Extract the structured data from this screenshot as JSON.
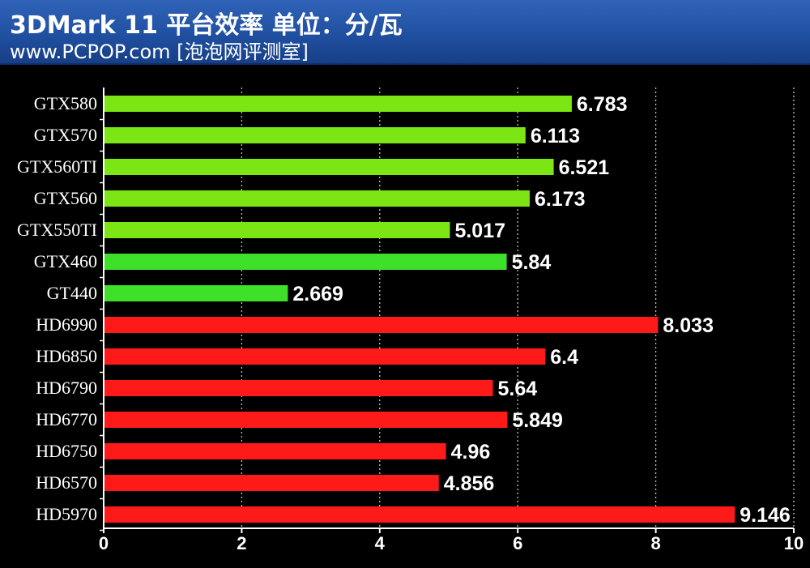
{
  "header": {
    "title": "3DMark 11 平台效率  单位：分/瓦",
    "subtitle": "www.PCPOP.com [泡泡网评测室]"
  },
  "colors": {
    "nvidia_light": "#7be614",
    "nvidia_dark": "#3fe02a",
    "amd": "#ff1a1a",
    "background": "#000000"
  },
  "chart_data": {
    "type": "bar",
    "orientation": "horizontal",
    "title": "3DMark 11 平台效率  单位：分/瓦",
    "xlabel": "",
    "ylabel": "",
    "xlim": [
      0,
      10
    ],
    "xticks": [
      0,
      2,
      4,
      6,
      8,
      10
    ],
    "grid": true,
    "categories": [
      "GTX580",
      "GTX570",
      "GTX560TI",
      "GTX560",
      "GTX550TI",
      "GTX460",
      "GT440",
      "HD6990",
      "HD6850",
      "HD6790",
      "HD6770",
      "HD6750",
      "HD6570",
      "HD5970"
    ],
    "values": [
      6.783,
      6.113,
      6.521,
      6.173,
      5.017,
      5.84,
      2.669,
      8.033,
      6.4,
      5.64,
      5.849,
      4.96,
      4.856,
      9.146
    ],
    "value_labels": [
      "6.783",
      "6.113",
      "6.521",
      "6.173",
      "5.017",
      "5.84",
      "2.669",
      "8.033",
      "6.4",
      "5.64",
      "5.849",
      "4.96",
      "4.856",
      "9.146"
    ],
    "bar_colors": [
      "#7be614",
      "#7be614",
      "#7be614",
      "#7be614",
      "#7be614",
      "#3fe02a",
      "#3fe02a",
      "#ff1a1a",
      "#ff1a1a",
      "#ff1a1a",
      "#ff1a1a",
      "#ff1a1a",
      "#ff1a1a",
      "#ff1a1a"
    ]
  }
}
